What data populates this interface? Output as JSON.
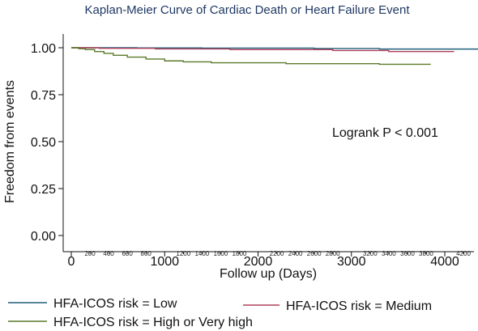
{
  "chart_data": {
    "type": "line",
    "title": "Kaplan-Meier Curve of Cardiac Death or Heart Failure Event",
    "xlabel": "Follow up (Days)",
    "ylabel": "Freedom from events",
    "xlim": [
      -50,
      4550
    ],
    "ylim": [
      -0.05,
      1.05
    ],
    "x_major_ticks": [
      0,
      1000,
      2000,
      3000,
      4000
    ],
    "x_major_tick_labels": [
      "0",
      "1000",
      "2000",
      "3000",
      "4000"
    ],
    "x_minor_ticks": [
      200,
      400,
      600,
      800,
      1200,
      1400,
      1600,
      1800,
      2200,
      2400,
      2600,
      2800,
      3200,
      3400,
      3600,
      3800,
      4200
    ],
    "x_minor_tick_labels": [
      "200",
      "400",
      "600",
      "800",
      "1200",
      "1400",
      "1600",
      "1800",
      "2200",
      "2400",
      "2600",
      "2800",
      "3200",
      "3400",
      "3600",
      "3800",
      "4200"
    ],
    "y_ticks": [
      0,
      0.25,
      0.5,
      0.75,
      1.0
    ],
    "y_tick_labels": [
      "0.00",
      "0.25",
      "0.50",
      "0.75",
      "1.00"
    ],
    "annotation": "Logrank P < 0.001",
    "grid": false,
    "legend_position": "bottom",
    "series": [
      {
        "name": "HFA-ICOS risk = Low",
        "color": "#1f5f7a",
        "x": [
          0,
          700,
          1400,
          2600,
          3300,
          4400
        ],
        "y": [
          1.0,
          0.999,
          0.998,
          0.996,
          0.993,
          0.992
        ]
      },
      {
        "name": "HFA-ICOS risk = Medium",
        "color": "#b0405a",
        "x": [
          0,
          300,
          900,
          1700,
          2800,
          3400,
          4100
        ],
        "y": [
          1.0,
          0.997,
          0.994,
          0.99,
          0.985,
          0.98,
          0.98
        ]
      },
      {
        "name": "HFA-ICOS risk = High or Very high",
        "color": "#5a7a2a",
        "x": [
          0,
          80,
          150,
          250,
          350,
          450,
          600,
          800,
          1000,
          1200,
          1500,
          2300,
          3300,
          3850
        ],
        "y": [
          1.0,
          0.995,
          0.99,
          0.98,
          0.97,
          0.96,
          0.95,
          0.94,
          0.93,
          0.925,
          0.92,
          0.915,
          0.912,
          0.912
        ]
      }
    ]
  }
}
